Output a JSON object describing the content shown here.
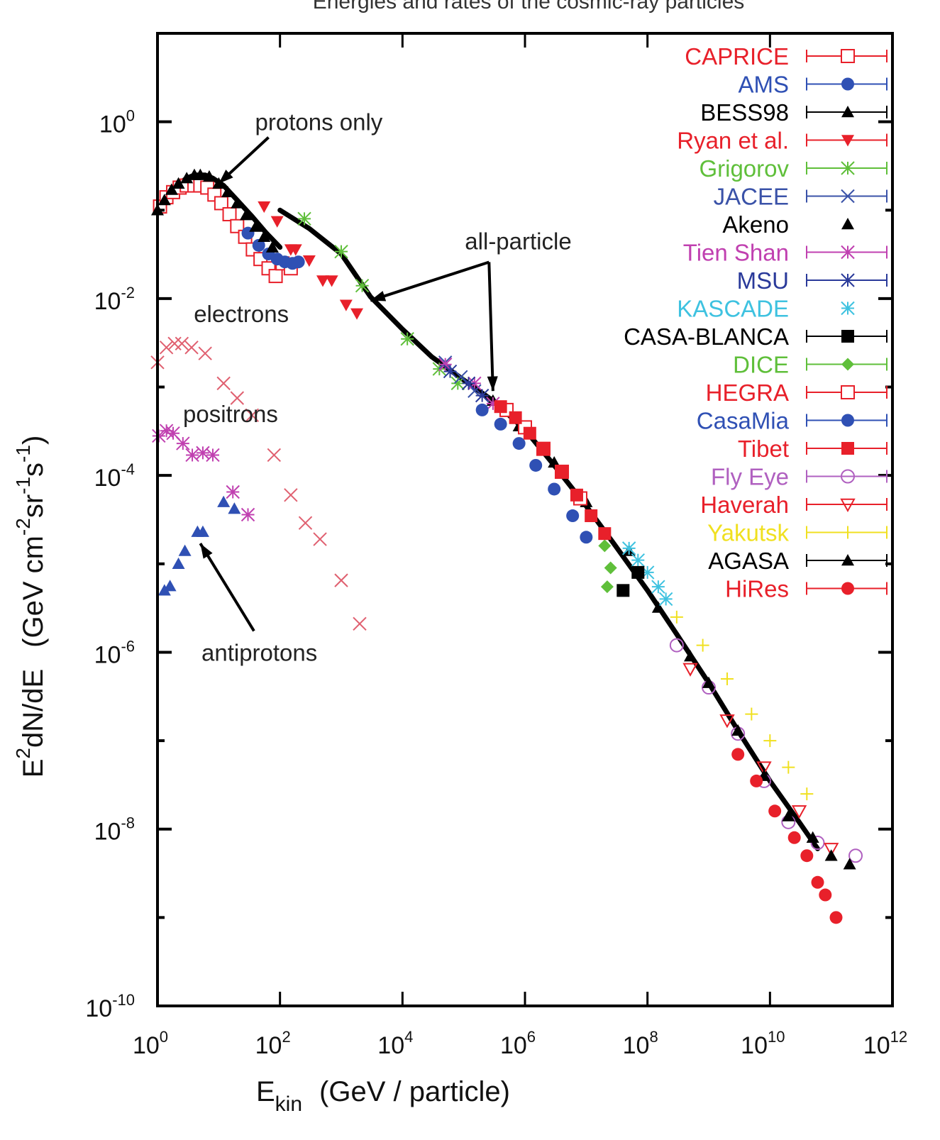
{
  "chart_data": {
    "type": "scatter",
    "title": "Energies and rates of the cosmic-ray particles",
    "xlabel": "E_kin  (GeV / particle)",
    "xlabel_main": "E",
    "xlabel_sub": "kin",
    "xlabel_rest": "(GeV / particle)",
    "ylabel": "E^2 dN/dE  (GeV cm^-2 sr^-1 s^-1)",
    "xscale": "log",
    "yscale": "log",
    "xlim": [
      1,
      1000000000000.0
    ],
    "ylim": [
      1e-10,
      10
    ],
    "grid": false,
    "legend_position": "top-right",
    "x_ticks": [
      {
        "value": 1,
        "base": "10",
        "exp": "0"
      },
      {
        "value": 100,
        "base": "10",
        "exp": "2"
      },
      {
        "value": 10000,
        "base": "10",
        "exp": "4"
      },
      {
        "value": 1000000,
        "base": "10",
        "exp": "6"
      },
      {
        "value": 100000000,
        "base": "10",
        "exp": "8"
      },
      {
        "value": 10000000000,
        "base": "10",
        "exp": "10"
      },
      {
        "value": 1000000000000,
        "base": "10",
        "exp": "12"
      }
    ],
    "y_ticks": [
      {
        "value": 1,
        "base": "10",
        "exp": "0"
      },
      {
        "value": 0.01,
        "base": "10",
        "exp": "-2"
      },
      {
        "value": 0.0001,
        "base": "10",
        "exp": "-4"
      },
      {
        "value": 1e-06,
        "base": "10",
        "exp": "-6"
      },
      {
        "value": 1e-08,
        "base": "10",
        "exp": "-8"
      },
      {
        "value": 1e-10,
        "base": "10",
        "exp": "-10"
      }
    ],
    "annotations": [
      {
        "text": "protons only",
        "x": 15,
        "y": 1.0,
        "arrow_to": [
          10,
          0.2
        ]
      },
      {
        "text": "all-particle",
        "x": 40000.0,
        "y": 0.045,
        "arrow_to_1": [
          3000,
          0.0095
        ],
        "arrow_to_2": [
          300000.0,
          0.0009
        ]
      },
      {
        "text": "electrons",
        "x": 1.5,
        "y": 0.0068
      },
      {
        "text": "positrons",
        "x": 1.0,
        "y": 0.0005
      },
      {
        "text": "antiprotons",
        "x": 2.0,
        "y": 1e-06,
        "arrow_to": [
          5,
          1.7e-05
        ]
      }
    ],
    "series": [
      {
        "name": "CAPRICE",
        "color": "#e8202a",
        "marker": "open-square",
        "points": [
          [
            1.1,
            0.11
          ],
          [
            1.4,
            0.14
          ],
          [
            1.8,
            0.16
          ],
          [
            2.3,
            0.18
          ],
          [
            3,
            0.19
          ],
          [
            4,
            0.19
          ],
          [
            5,
            0.19
          ],
          [
            6.5,
            0.18
          ],
          [
            8.5,
            0.15
          ],
          [
            11,
            0.12
          ],
          [
            15,
            0.09
          ],
          [
            20,
            0.066
          ],
          [
            27,
            0.05
          ],
          [
            36,
            0.036
          ],
          [
            48,
            0.028
          ],
          [
            65,
            0.022
          ],
          [
            85,
            0.018
          ],
          [
            110,
            0.025
          ],
          [
            150,
            0.022
          ]
        ]
      },
      {
        "name": "AMS",
        "color": "#2f50b4",
        "marker": "filled-circle",
        "points": [
          [
            30,
            0.055
          ],
          [
            45,
            0.04
          ],
          [
            65,
            0.032
          ],
          [
            90,
            0.028
          ],
          [
            120,
            0.026
          ],
          [
            160,
            0.025
          ],
          [
            200,
            0.026
          ]
        ]
      },
      {
        "name": "BESS98",
        "color": "#000000",
        "marker": "filled-triangle",
        "points": [
          [
            1,
            0.1
          ],
          [
            1.3,
            0.13
          ],
          [
            1.7,
            0.17
          ],
          [
            2.2,
            0.2
          ],
          [
            3,
            0.23
          ],
          [
            4,
            0.25
          ],
          [
            5,
            0.25
          ],
          [
            7,
            0.24
          ],
          [
            10,
            0.2
          ],
          [
            14,
            0.16
          ],
          [
            20,
            0.12
          ],
          [
            28,
            0.088
          ],
          [
            40,
            0.065
          ],
          [
            55,
            0.05
          ],
          [
            75,
            0.038
          ]
        ]
      },
      {
        "name": "Ryan et al.",
        "color": "#e8202a",
        "marker": "filled-down-triangle",
        "points": [
          [
            55,
            0.11
          ],
          [
            90,
            0.075
          ],
          [
            150,
            0.036
          ],
          [
            180,
            0.036
          ],
          [
            300,
            0.027
          ],
          [
            500,
            0.016
          ],
          [
            700,
            0.016
          ],
          [
            1200,
            0.0085
          ],
          [
            1800,
            0.0068
          ]
        ]
      },
      {
        "name": "Grigorov",
        "color": "#5fbf3a",
        "marker": "star",
        "points": [
          [
            250,
            0.08
          ],
          [
            1000,
            0.034
          ],
          [
            2200,
            0.014
          ],
          [
            12000,
            0.0035
          ],
          [
            40000,
            0.0016
          ],
          [
            80000,
            0.0011
          ]
        ]
      },
      {
        "name": "JACEE",
        "color": "#3a52a8",
        "marker": "cross",
        "points": [
          [
            50000,
            0.0019
          ],
          [
            90000,
            0.0013
          ],
          [
            150000,
            0.0009
          ]
        ]
      },
      {
        "name": "Akeno",
        "color": "#000000",
        "marker": "filled-triangle",
        "points": [
          [
            300000.0,
            0.0007
          ],
          [
            800000.0,
            0.00036
          ],
          [
            3000000.0,
            0.00014
          ],
          [
            10000000.0,
            5e-05
          ],
          [
            50000000.0,
            1.4e-05
          ],
          [
            150000000.0,
            3.2e-06
          ],
          [
            500000000.0,
            9e-07
          ]
        ]
      },
      {
        "name": "Tien Shan",
        "color": "#c040b0",
        "marker": "star",
        "points": [
          [
            50000,
            0.0018
          ],
          [
            150000,
            0.0011
          ],
          [
            300000.0,
            0.00065
          ]
        ]
      },
      {
        "name": "MSU",
        "color": "#2a3a9a",
        "marker": "star",
        "points": [
          [
            60000,
            0.0015
          ],
          [
            120000.0,
            0.0011
          ],
          [
            200000.0,
            0.0008
          ]
        ]
      },
      {
        "name": "KASCADE",
        "color": "#3ec2e0",
        "marker": "star",
        "points": [
          [
            50000000.0,
            1.5e-05
          ],
          [
            70000000.0,
            1.1e-05
          ],
          [
            100000000.0,
            8e-06
          ],
          [
            150000000.0,
            5.5e-06
          ],
          [
            200000000.0,
            4e-06
          ]
        ]
      },
      {
        "name": "CASA-BLANCA",
        "color": "#000000",
        "marker": "filled-square",
        "points": [
          [
            40000000.0,
            5e-06
          ],
          [
            70000000.0,
            8e-06
          ]
        ]
      },
      {
        "name": "DICE",
        "color": "#5fbf3a",
        "marker": "filled-diamond",
        "points": [
          [
            20000000.0,
            1.6e-05
          ],
          [
            25000000.0,
            9e-06
          ],
          [
            22000000.0,
            5.5e-06
          ]
        ]
      },
      {
        "name": "HEGRA",
        "color": "#e8202a",
        "marker": "open-square",
        "points": [
          [
            500000.0,
            0.00055
          ],
          [
            1000000.0,
            0.00035
          ],
          [
            2000000.0,
            0.0002
          ],
          [
            4000000.0,
            0.00011
          ],
          [
            8000000.0,
            5.5e-05
          ]
        ]
      },
      {
        "name": "CasaMia",
        "color": "#2f50b4",
        "marker": "filled-circle",
        "points": [
          [
            200000.0,
            0.00055
          ],
          [
            400000.0,
            0.00038
          ],
          [
            800000.0,
            0.00023
          ],
          [
            1500000.0,
            0.00013
          ],
          [
            3000000.0,
            7e-05
          ],
          [
            6000000.0,
            3.5e-05
          ],
          [
            10000000.0,
            2e-05
          ]
        ]
      },
      {
        "name": "Tibet",
        "color": "#e8202a",
        "marker": "filled-square",
        "points": [
          [
            400000.0,
            0.0006
          ],
          [
            700000.0,
            0.00045
          ],
          [
            1200000.0,
            0.0003
          ],
          [
            2000000.0,
            0.0002
          ],
          [
            4000000.0,
            0.00011
          ],
          [
            7000000.0,
            6e-05
          ],
          [
            12000000.0,
            3.5e-05
          ],
          [
            20000000.0,
            2.2e-05
          ]
        ]
      },
      {
        "name": "Fly Eye",
        "color": "#b060c0",
        "marker": "open-circle",
        "points": [
          [
            300000000.0,
            1.2e-06
          ],
          [
            1000000000.0,
            4e-07
          ],
          [
            3000000000.0,
            1.2e-07
          ],
          [
            8000000000.0,
            3.5e-08
          ],
          [
            20000000000.0,
            1.2e-08
          ],
          [
            60000000000.0,
            7e-09
          ],
          [
            250000000000.0,
            5e-09
          ]
        ]
      },
      {
        "name": "Haverah",
        "color": "#e8202a",
        "marker": "open-down-triangle",
        "points": [
          [
            500000000.0,
            6.5e-07
          ],
          [
            2000000000.0,
            1.7e-07
          ],
          [
            8000000000.0,
            5e-08
          ],
          [
            30000000000.0,
            1.6e-08
          ],
          [
            100000000000.0,
            6e-09
          ]
        ]
      },
      {
        "name": "Yakutsk",
        "color": "#f0e020",
        "marker": "plus",
        "points": [
          [
            300000000.0,
            2.5e-06
          ],
          [
            800000000.0,
            1.2e-06
          ],
          [
            2000000000.0,
            5e-07
          ],
          [
            5000000000.0,
            2e-07
          ],
          [
            10000000000.0,
            1e-07
          ],
          [
            20000000000.0,
            5e-08
          ],
          [
            40000000000.0,
            2.5e-08
          ]
        ]
      },
      {
        "name": "AGASA",
        "color": "#000000",
        "marker": "filled-triangle",
        "points": [
          [
            1000000000.0,
            4.5e-07
          ],
          [
            3000000000.0,
            1.3e-07
          ],
          [
            8000000000.0,
            4e-08
          ],
          [
            20000000000.0,
            1.4e-08
          ],
          [
            50000000000.0,
            8e-09
          ],
          [
            100000000000.0,
            5e-09
          ],
          [
            200000000000.0,
            4e-09
          ]
        ]
      },
      {
        "name": "HiRes",
        "color": "#e8202a",
        "marker": "filled-circle",
        "points": [
          [
            3000000000.0,
            7e-08
          ],
          [
            6000000000.0,
            3.5e-08
          ],
          [
            12000000000.0,
            1.6e-08
          ],
          [
            25000000000.0,
            8e-09
          ],
          [
            40000000000.0,
            5e-09
          ],
          [
            60000000000.0,
            2.5e-09
          ],
          [
            80000000000.0,
            1.8e-09
          ],
          [
            120000000000.0,
            1e-09
          ]
        ]
      }
    ],
    "unlabeled_series": [
      {
        "name": "electrons",
        "color": "#e06070",
        "marker": "cross",
        "points": [
          [
            1,
            0.0019
          ],
          [
            1.4,
            0.0028
          ],
          [
            1.9,
            0.0031
          ],
          [
            2.5,
            0.0031
          ],
          [
            3.6,
            0.0028
          ],
          [
            6,
            0.0024
          ],
          [
            12,
            0.0011
          ],
          [
            20,
            0.00075
          ],
          [
            35,
            0.00048
          ],
          [
            80,
            0.00017
          ],
          [
            150,
            6e-05
          ],
          [
            260,
            2.9e-05
          ],
          [
            450,
            1.9e-05
          ],
          [
            1000,
            6.5e-06
          ],
          [
            2000,
            2.1e-06
          ]
        ]
      },
      {
        "name": "positrons",
        "color": "#c040b0",
        "marker": "star",
        "points": [
          [
            1.05,
            0.00028
          ],
          [
            1.4,
            0.00032
          ],
          [
            1.8,
            0.0003
          ],
          [
            2.6,
            0.00023
          ],
          [
            3.7,
            0.00017
          ],
          [
            5.5,
            0.00018
          ],
          [
            8,
            0.00017
          ],
          [
            17,
            6.5e-05
          ],
          [
            30,
            3.6e-05
          ]
        ]
      },
      {
        "name": "antiprotons",
        "color": "#2f50b4",
        "marker": "filled-triangle",
        "points": [
          [
            1.3,
            5e-06
          ],
          [
            1.6,
            5.6e-06
          ],
          [
            2.2,
            1e-05
          ],
          [
            2.8,
            1.4e-05
          ],
          [
            4.5,
            2.3e-05
          ],
          [
            5.5,
            2.3e-05
          ],
          [
            12,
            5e-05
          ],
          [
            18,
            4.2e-05
          ]
        ]
      }
    ],
    "curves": [
      {
        "name": "all-particle",
        "color": "#000000",
        "points": [
          [
            100,
            0.1
          ],
          [
            300,
            0.062
          ],
          [
            1000,
            0.032
          ],
          [
            3000,
            0.0105
          ],
          [
            10000,
            0.0045
          ],
          [
            30000,
            0.0022
          ],
          [
            100000.0,
            0.0012
          ],
          [
            300000.0,
            0.0007
          ],
          [
            1000000.0,
            0.00033
          ],
          [
            3000000.0,
            0.00013
          ],
          [
            10000000.0,
            4.5e-05
          ],
          [
            30000000.0,
            1.6e-05
          ],
          [
            100000000.0,
            5e-06
          ],
          [
            300000000.0,
            1.6e-06
          ],
          [
            1000000000.0,
            4.5e-07
          ],
          [
            3000000000.0,
            1.3e-07
          ],
          [
            10000000000.0,
            3.5e-08
          ],
          [
            30000000000.0,
            1.2e-08
          ],
          [
            60000000000.0,
            6e-09
          ]
        ]
      },
      {
        "name": "protons only",
        "color": "#000000",
        "points": [
          [
            1,
            0.1
          ],
          [
            1.5,
            0.15
          ],
          [
            2,
            0.19
          ],
          [
            3,
            0.23
          ],
          [
            4,
            0.25
          ],
          [
            6,
            0.25
          ],
          [
            8,
            0.23
          ],
          [
            12,
            0.19
          ],
          [
            20,
            0.13
          ],
          [
            35,
            0.085
          ],
          [
            60,
            0.055
          ],
          [
            100,
            0.038
          ]
        ]
      }
    ]
  }
}
